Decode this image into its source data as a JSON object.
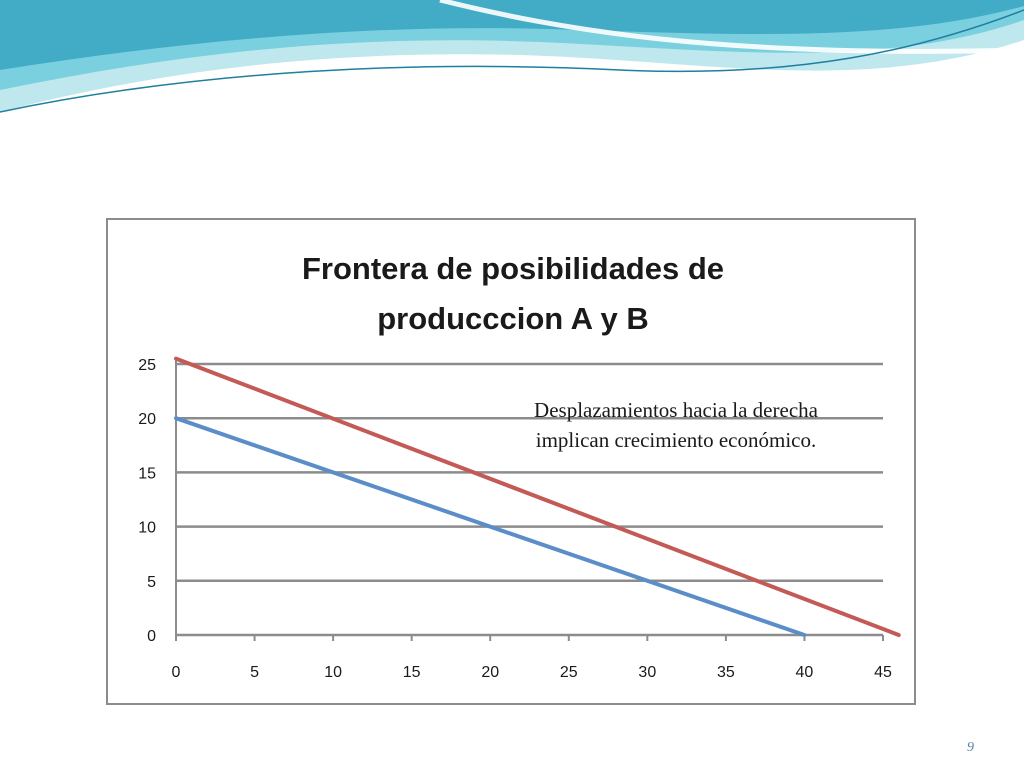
{
  "slide": {
    "page_number": "9"
  },
  "colors": {
    "wave_light": "#bfe7ee",
    "wave_mid": "#6ecbdc",
    "wave_dark": "#2f9fbe",
    "grid": "#8c8c8c",
    "series_a": "#5b8dc9",
    "series_b": "#c45a55"
  },
  "chart_data": {
    "type": "line",
    "title": [
      "Frontera de posibilidades de",
      "producccion A y B"
    ],
    "xlabel": "",
    "ylabel": "",
    "xlim": [
      0,
      45
    ],
    "ylim": [
      0,
      25
    ],
    "x_ticks": [
      "0",
      "5",
      "10",
      "15",
      "20",
      "25",
      "30",
      "35",
      "40",
      "45"
    ],
    "y_ticks": [
      "0",
      "5",
      "10",
      "15",
      "20",
      "25"
    ],
    "grid": "horizontal",
    "legend": "none",
    "series": [
      {
        "color": "#5b8dc9",
        "x": [
          0,
          40
        ],
        "y": [
          20,
          0
        ]
      },
      {
        "color": "#c45a55",
        "x": [
          0,
          46
        ],
        "y": [
          25.5,
          0
        ]
      }
    ],
    "annotation": [
      "Desplazamientos hacia la derecha",
      "implican crecimiento económico."
    ]
  }
}
